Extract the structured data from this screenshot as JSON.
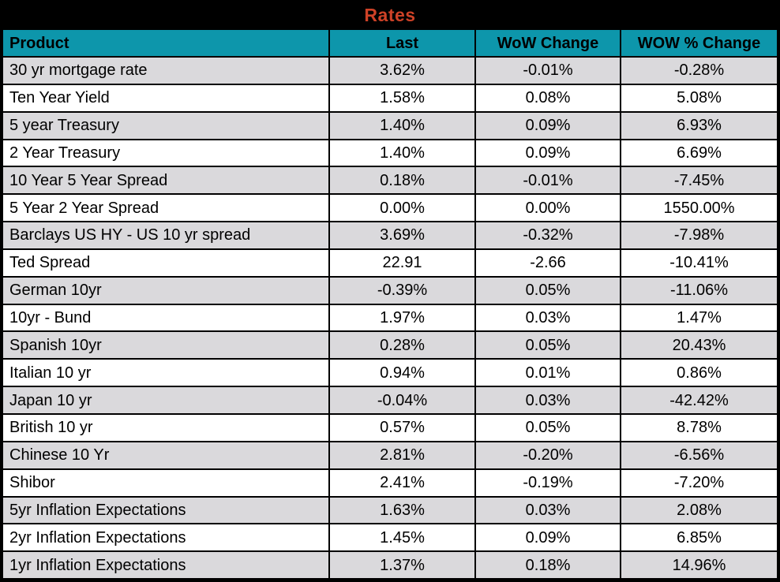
{
  "chart_data": {
    "type": "table",
    "title": "Rates",
    "columns": [
      "Product",
      "Last",
      "WoW Change",
      "WOW % Change"
    ],
    "rows": [
      [
        "30 yr mortgage rate",
        "3.62%",
        "-0.01%",
        "-0.28%"
      ],
      [
        "Ten Year Yield",
        "1.58%",
        "0.08%",
        "5.08%"
      ],
      [
        "5 year Treasury",
        "1.40%",
        "0.09%",
        "6.93%"
      ],
      [
        "2 Year Treasury",
        "1.40%",
        "0.09%",
        "6.69%"
      ],
      [
        "10 Year 5 Year Spread",
        "0.18%",
        "-0.01%",
        "-7.45%"
      ],
      [
        "5 Year 2 Year Spread",
        "0.00%",
        "0.00%",
        "1550.00%"
      ],
      [
        "Barclays US HY - US 10 yr spread",
        "3.69%",
        "-0.32%",
        "-7.98%"
      ],
      [
        "Ted Spread",
        "22.91",
        "-2.66",
        "-10.41%"
      ],
      [
        "German 10yr",
        "-0.39%",
        "0.05%",
        "-11.06%"
      ],
      [
        "10yr - Bund",
        "1.97%",
        "0.03%",
        "1.47%"
      ],
      [
        "Spanish 10yr",
        "0.28%",
        "0.05%",
        "20.43%"
      ],
      [
        "Italian 10 yr",
        "0.94%",
        "0.01%",
        "0.86%"
      ],
      [
        "Japan 10 yr",
        "-0.04%",
        "0.03%",
        "-42.42%"
      ],
      [
        "British 10 yr",
        "0.57%",
        "0.05%",
        "8.78%"
      ],
      [
        "Chinese 10 Yr",
        "2.81%",
        "-0.20%",
        "-6.56%"
      ],
      [
        "Shibor",
        "2.41%",
        "-0.19%",
        "-7.20%"
      ],
      [
        "5yr Inflation Expectations",
        "1.63%",
        "0.03%",
        "2.08%"
      ],
      [
        "2yr Inflation Expectations",
        "1.45%",
        "0.09%",
        "6.85%"
      ],
      [
        "1yr Inflation Expectations",
        "1.37%",
        "0.18%",
        "14.96%"
      ]
    ]
  },
  "colors": {
    "title_color": "#CE4227",
    "header_bg": "#0D96AB",
    "row_alt_bg": "#DAD9DC",
    "grid_line": "#000000"
  }
}
